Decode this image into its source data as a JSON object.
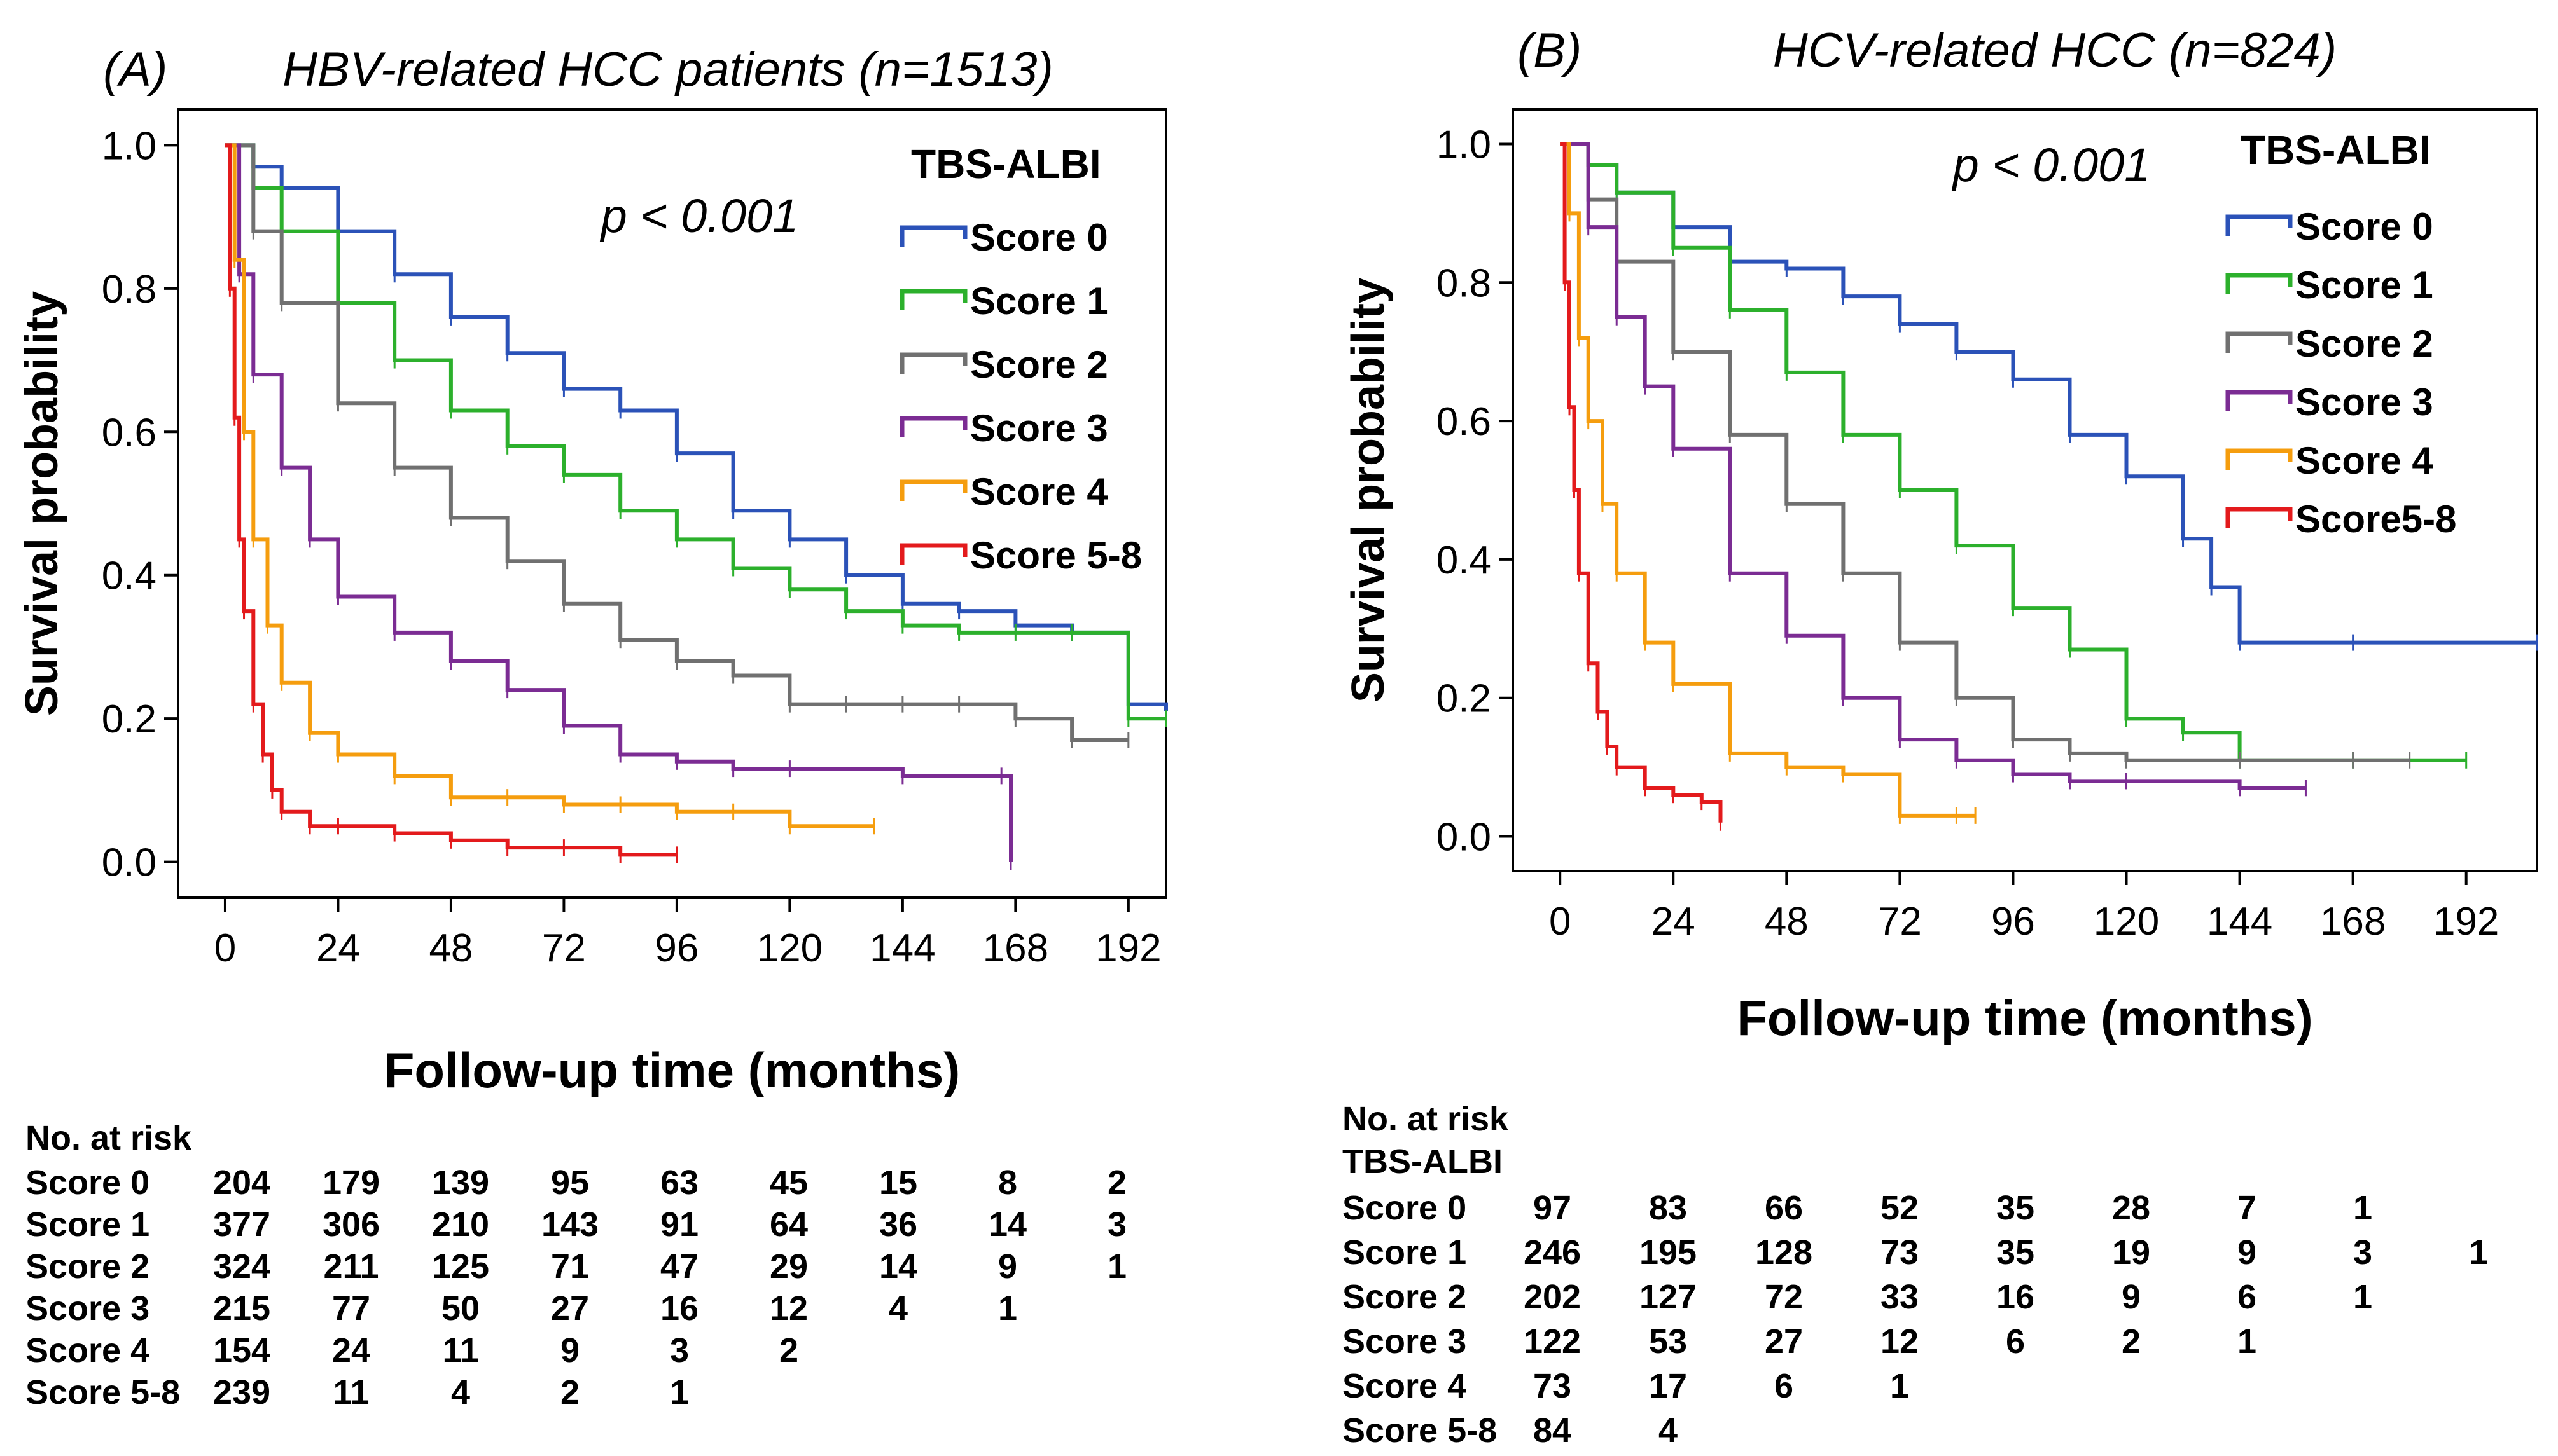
{
  "chart_data": [
    {
      "type": "line",
      "panel_label": "(A)",
      "title": "HBV-related HCC patients (n=1513)",
      "xlabel": "Follow-up time (months)",
      "ylabel": "Survival probability",
      "xticks": [
        0,
        24,
        48,
        72,
        96,
        120,
        144,
        168,
        192
      ],
      "xtick_labels": [
        "0",
        "24",
        "48",
        "72",
        "96",
        "120",
        "144",
        "168",
        "192"
      ],
      "yticks": [
        0,
        0.2,
        0.4,
        0.6,
        0.8,
        1.0
      ],
      "ytick_labels": [
        "0.0",
        "0.2",
        "0.4",
        "0.6",
        "0.8",
        "1.0"
      ],
      "xlim": [
        -10,
        200
      ],
      "ylim": [
        -0.05,
        1.05
      ],
      "p_value": "p < 0.001",
      "legend_title": "TBS-ALBI",
      "legend_position": "top-right",
      "series": [
        {
          "name": "Score 0",
          "color": "#2b52b8",
          "x": [
            0,
            6,
            12,
            24,
            36,
            48,
            60,
            72,
            84,
            96,
            108,
            120,
            132,
            144,
            156,
            168,
            180,
            192,
            200
          ],
          "y": [
            1.0,
            0.97,
            0.94,
            0.88,
            0.82,
            0.76,
            0.71,
            0.66,
            0.63,
            0.57,
            0.49,
            0.45,
            0.4,
            0.36,
            0.35,
            0.33,
            0.32,
            0.22,
            0.21
          ]
        },
        {
          "name": "Score 1",
          "color": "#2cb02c",
          "x": [
            0,
            6,
            12,
            24,
            36,
            48,
            60,
            72,
            84,
            96,
            108,
            120,
            132,
            144,
            156,
            168,
            180,
            192,
            200
          ],
          "y": [
            1.0,
            0.94,
            0.88,
            0.78,
            0.7,
            0.63,
            0.58,
            0.54,
            0.49,
            0.45,
            0.41,
            0.38,
            0.35,
            0.33,
            0.32,
            0.32,
            0.32,
            0.2,
            0.2
          ]
        },
        {
          "name": "Score 2",
          "color": "#707070",
          "x": [
            0,
            6,
            12,
            24,
            36,
            48,
            60,
            72,
            84,
            96,
            108,
            120,
            132,
            144,
            156,
            168,
            180,
            192
          ],
          "y": [
            1.0,
            0.88,
            0.78,
            0.64,
            0.55,
            0.48,
            0.42,
            0.36,
            0.31,
            0.28,
            0.26,
            0.22,
            0.22,
            0.22,
            0.22,
            0.2,
            0.17,
            0.17
          ]
        },
        {
          "name": "Score 3",
          "color": "#7b2c93",
          "x": [
            0,
            3,
            6,
            12,
            18,
            24,
            36,
            48,
            60,
            72,
            84,
            96,
            108,
            120,
            144,
            165,
            167
          ],
          "y": [
            1.0,
            0.82,
            0.68,
            0.55,
            0.45,
            0.37,
            0.32,
            0.28,
            0.24,
            0.19,
            0.15,
            0.14,
            0.13,
            0.13,
            0.12,
            0.12,
            0.0
          ]
        },
        {
          "name": "Score 4",
          "color": "#f59d0e",
          "x": [
            0,
            2,
            4,
            6,
            9,
            12,
            18,
            24,
            36,
            48,
            60,
            72,
            84,
            96,
            108,
            120,
            138
          ],
          "y": [
            1.0,
            0.84,
            0.6,
            0.45,
            0.33,
            0.25,
            0.18,
            0.15,
            0.12,
            0.09,
            0.09,
            0.08,
            0.08,
            0.07,
            0.07,
            0.05,
            0.05
          ]
        },
        {
          "name": "Score 5-8",
          "color": "#e31a1c",
          "x": [
            0,
            1,
            2,
            3,
            4,
            6,
            8,
            10,
            12,
            18,
            24,
            36,
            48,
            60,
            72,
            84,
            96
          ],
          "y": [
            1.0,
            0.8,
            0.62,
            0.45,
            0.35,
            0.22,
            0.15,
            0.1,
            0.07,
            0.05,
            0.05,
            0.04,
            0.03,
            0.02,
            0.02,
            0.01,
            0.01
          ]
        }
      ],
      "risk_table": {
        "header": "No. at risk",
        "subheader": "",
        "rows": [
          {
            "label": "Score 0",
            "values": [
              "204",
              "179",
              "139",
              "95",
              "63",
              "45",
              "15",
              "8",
              "2"
            ]
          },
          {
            "label": "Score 1",
            "values": [
              "377",
              "306",
              "210",
              "143",
              "91",
              "64",
              "36",
              "14",
              "3"
            ]
          },
          {
            "label": "Score 2",
            "values": [
              "324",
              "211",
              "125",
              "71",
              "47",
              "29",
              "14",
              "9",
              "1"
            ]
          },
          {
            "label": "Score 3",
            "values": [
              "215",
              "77",
              "50",
              "27",
              "16",
              "12",
              "4",
              "1",
              ""
            ]
          },
          {
            "label": "Score 4",
            "values": [
              "154",
              "24",
              "11",
              "9",
              "3",
              "2",
              "",
              "",
              ""
            ]
          },
          {
            "label": "Score 5-8",
            "values": [
              "239",
              "11",
              "4",
              "2",
              "1",
              "",
              "",
              "",
              ""
            ]
          }
        ]
      }
    },
    {
      "type": "line",
      "panel_label": "(B)",
      "title": "HCV-related HCC (n=824)",
      "xlabel": "Follow-up time (months)",
      "ylabel": "Survival probability",
      "xticks": [
        0,
        24,
        48,
        72,
        96,
        120,
        144,
        168,
        192
      ],
      "xtick_labels": [
        "0",
        "24",
        "48",
        "72",
        "96",
        "120",
        "144",
        "168",
        "192"
      ],
      "yticks": [
        0,
        0.2,
        0.4,
        0.6,
        0.8,
        1.0
      ],
      "ytick_labels": [
        "0.0",
        "0.2",
        "0.4",
        "0.6",
        "0.8",
        "1.0"
      ],
      "xlim": [
        -10,
        207
      ],
      "ylim": [
        -0.05,
        1.05
      ],
      "p_value": "p < 0.001",
      "legend_title": "TBS-ALBI",
      "legend_position": "top-right",
      "series": [
        {
          "name": "Score 0",
          "color": "#2b52b8",
          "x": [
            0,
            6,
            12,
            24,
            36,
            48,
            60,
            72,
            84,
            96,
            108,
            120,
            132,
            138,
            144,
            168,
            207
          ],
          "y": [
            1.0,
            0.97,
            0.93,
            0.88,
            0.83,
            0.82,
            0.78,
            0.74,
            0.7,
            0.66,
            0.58,
            0.52,
            0.43,
            0.36,
            0.28,
            0.28,
            0.28
          ]
        },
        {
          "name": "Score 1",
          "color": "#2cb02c",
          "x": [
            0,
            6,
            12,
            24,
            36,
            48,
            60,
            72,
            84,
            96,
            108,
            120,
            132,
            144,
            168,
            192
          ],
          "y": [
            1.0,
            0.97,
            0.93,
            0.85,
            0.76,
            0.67,
            0.58,
            0.5,
            0.42,
            0.33,
            0.27,
            0.17,
            0.15,
            0.11,
            0.11,
            0.11
          ]
        },
        {
          "name": "Score 2",
          "color": "#707070",
          "x": [
            0,
            6,
            12,
            24,
            36,
            48,
            60,
            72,
            84,
            96,
            108,
            120,
            144,
            168,
            180
          ],
          "y": [
            1.0,
            0.92,
            0.83,
            0.7,
            0.58,
            0.48,
            0.38,
            0.28,
            0.2,
            0.14,
            0.12,
            0.11,
            0.11,
            0.11,
            0.11
          ]
        },
        {
          "name": "Score 3",
          "color": "#7b2c93",
          "x": [
            0,
            6,
            12,
            18,
            24,
            36,
            48,
            60,
            72,
            84,
            96,
            108,
            120,
            144,
            158
          ],
          "y": [
            1.0,
            0.88,
            0.75,
            0.65,
            0.56,
            0.38,
            0.29,
            0.2,
            0.14,
            0.11,
            0.09,
            0.08,
            0.08,
            0.07,
            0.07
          ]
        },
        {
          "name": "Score 4",
          "color": "#f59d0e",
          "x": [
            0,
            2,
            4,
            6,
            9,
            12,
            18,
            24,
            36,
            48,
            60,
            72,
            84,
            88
          ],
          "y": [
            1.0,
            0.9,
            0.72,
            0.6,
            0.48,
            0.38,
            0.28,
            0.22,
            0.12,
            0.1,
            0.09,
            0.03,
            0.03,
            0.03
          ]
        },
        {
          "name": "Score5-8",
          "color": "#e31a1c",
          "x": [
            0,
            1,
            2,
            3,
            4,
            6,
            8,
            10,
            12,
            18,
            24,
            30,
            34
          ],
          "y": [
            1.0,
            0.8,
            0.62,
            0.5,
            0.38,
            0.25,
            0.18,
            0.13,
            0.1,
            0.07,
            0.06,
            0.05,
            0.02
          ]
        }
      ],
      "risk_table": {
        "header": "No. at risk",
        "subheader": "TBS-ALBI",
        "rows": [
          {
            "label": "Score 0",
            "values": [
              "97",
              "83",
              "66",
              "52",
              "35",
              "28",
              "7",
              "1",
              ""
            ]
          },
          {
            "label": "Score 1",
            "values": [
              "246",
              "195",
              "128",
              "73",
              "35",
              "19",
              "9",
              "3",
              "1"
            ]
          },
          {
            "label": "Score 2",
            "values": [
              "202",
              "127",
              "72",
              "33",
              "16",
              "9",
              "6",
              "1",
              ""
            ]
          },
          {
            "label": "Score 3",
            "values": [
              "122",
              "53",
              "27",
              "12",
              "6",
              "2",
              "1",
              "",
              ""
            ]
          },
          {
            "label": "Score 4",
            "values": [
              "73",
              "17",
              "6",
              "1",
              "",
              "",
              "",
              "",
              ""
            ]
          },
          {
            "label": "Score 5-8",
            "values": [
              "84",
              "4",
              "",
              "",
              "",
              "",
              "",
              "",
              ""
            ]
          }
        ]
      }
    }
  ]
}
